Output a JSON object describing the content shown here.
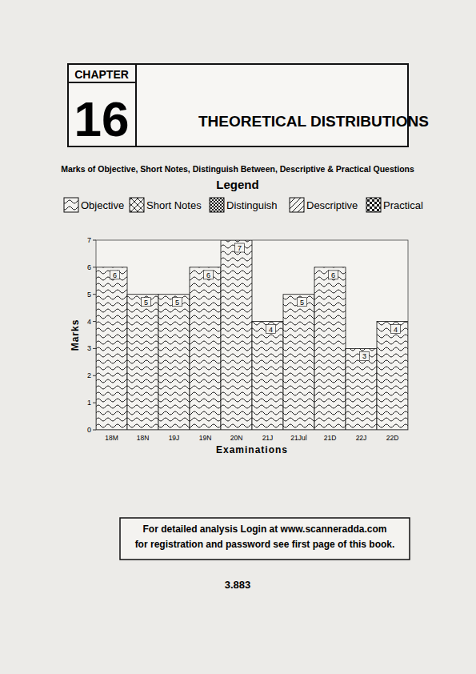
{
  "page": {
    "chapter_label": "CHAPTER",
    "chapter_number": "16",
    "title": "THEORETICAL DISTRIBUTIONS",
    "subtitle": "Marks of Objective, Short Notes, Distinguish Between, Descriptive & Practical Questions",
    "legend_title": "Legend",
    "note_lines": [
      "For detailed analysis Login at www.scanneradda.com",
      "for registration and password see first page of this book."
    ],
    "page_number": "3.883"
  },
  "chart_data": {
    "type": "bar",
    "stacked": true,
    "data_labels": true,
    "grid": false,
    "x_label": "Examinations",
    "y_label": "Marks",
    "categories": [
      "18M",
      "18N",
      "19J",
      "19N",
      "20N",
      "21J",
      "21Jul",
      "21D",
      "22J",
      "22D"
    ],
    "series": [
      {
        "name": "Objective",
        "color": "#1a1a1a",
        "values": [
          6,
          5,
          5,
          6,
          7,
          4,
          5,
          6,
          3,
          4
        ]
      },
      {
        "name": "Short Notes",
        "color": "#1a1a1a",
        "values": [
          0,
          0,
          0,
          0,
          0,
          0,
          0,
          0,
          0,
          0
        ]
      },
      {
        "name": "Distinguish",
        "color": "#1a1a1a",
        "values": [
          0,
          0,
          0,
          0,
          0,
          0,
          0,
          0,
          0,
          0
        ]
      },
      {
        "name": "Descriptive",
        "color": "#1a1a1a",
        "values": [
          0,
          0,
          0,
          0,
          0,
          0,
          0,
          0,
          0,
          0
        ]
      },
      {
        "name": "Practical",
        "color": "#1a1a1a",
        "values": [
          0,
          0,
          0,
          0,
          0,
          0,
          0,
          0,
          0,
          0
        ]
      }
    ],
    "ylim": [
      0,
      7
    ],
    "yticks": [
      0,
      1,
      2,
      3,
      4,
      5,
      6,
      7
    ]
  }
}
